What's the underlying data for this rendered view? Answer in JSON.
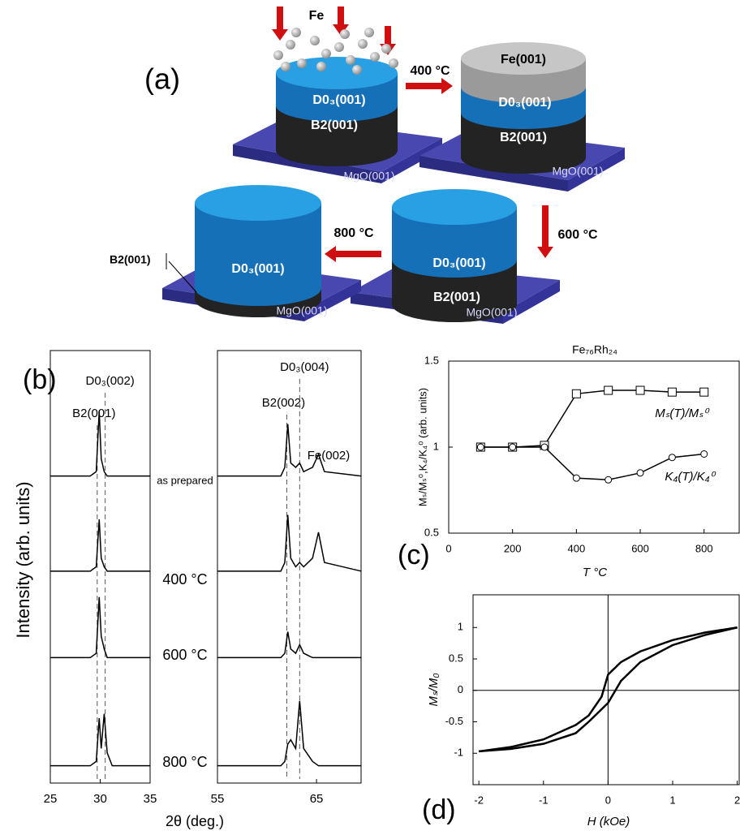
{
  "panel_a": {
    "label": "(a)",
    "deposit": "Fe",
    "steps": [
      "400 °C",
      "600 °C",
      "800 °C"
    ],
    "stages": [
      {
        "layers": [
          "D0₃(001)",
          "B2(001)"
        ],
        "substrate": "MgO(001)"
      },
      {
        "layers": [
          "Fe(001)",
          "D0₃(001)",
          "B2(001)"
        ],
        "substrate": "MgO(001)"
      },
      {
        "layers": [
          "D0₃(001)",
          "B2(001)"
        ],
        "substrate": "MgO(001)"
      },
      {
        "layers": [
          "D0₃(001)",
          "B2(001)"
        ],
        "substrate": "MgO(001)"
      }
    ]
  },
  "chart_data": [
    {
      "type": "line",
      "label": "(b)",
      "y_label": "Intensity (arb. units)",
      "x_label": "2θ (deg.)",
      "x": [
        25,
        29,
        29.6,
        29.9,
        30.1,
        30.4,
        30.7,
        31.2,
        35
      ],
      "series": [
        {
          "name": "as prepared",
          "color": "#000",
          "values": [
            7.1,
            7.1,
            7.2,
            8.6,
            7.5,
            7.2,
            7.1,
            7.1,
            7.1
          ]
        },
        {
          "name": "400 °C",
          "color": "#000",
          "values": [
            4.9,
            4.9,
            5.0,
            6.1,
            5.2,
            5.0,
            4.9,
            4.9,
            4.9
          ]
        },
        {
          "name": "600 °C",
          "color": "#000",
          "values": [
            2.9,
            2.9,
            3.0,
            4.3,
            3.4,
            3.1,
            2.9,
            2.9,
            2.9
          ]
        },
        {
          "name": "800 °C",
          "color": "#000",
          "values": [
            0.4,
            0.4,
            0.5,
            1.5,
            0.8,
            1.6,
            0.7,
            0.4,
            0.4
          ]
        }
      ],
      "ref_lines": [
        {
          "x": 29.7,
          "label": "B2(001)"
        },
        {
          "x": 30.5,
          "label": "D0₃(002)"
        }
      ],
      "xlim": [
        25,
        35
      ],
      "xticks": [
        25,
        30,
        35
      ],
      "ylim": [
        0,
        10
      ]
    },
    {
      "type": "line",
      "x": [
        55,
        61.4,
        61.8,
        62.1,
        62.4,
        62.9,
        63.3,
        63.7,
        64.6,
        65.2,
        65.8,
        69.5
      ],
      "series": [
        {
          "color": "#000",
          "values": [
            7.1,
            7.1,
            7.3,
            8.3,
            7.4,
            7.3,
            7.4,
            7.2,
            7.3,
            7.6,
            7.2,
            7.1
          ]
        },
        {
          "color": "#000",
          "values": [
            4.9,
            4.9,
            5.1,
            6.2,
            5.2,
            5.0,
            5.1,
            5.0,
            5.2,
            5.8,
            5.1,
            4.9
          ]
        },
        {
          "color": "#000",
          "values": [
            2.9,
            2.9,
            3.0,
            3.5,
            3.1,
            3.0,
            3.2,
            3.0,
            2.9,
            2.9,
            2.9,
            2.9
          ]
        },
        {
          "color": "#000",
          "values": [
            0.4,
            0.4,
            0.5,
            0.9,
            1.0,
            0.8,
            1.9,
            0.8,
            0.5,
            0.4,
            0.4,
            0.4
          ]
        }
      ],
      "ref_lines": [
        {
          "x": 62.0,
          "label": "B2(002)"
        },
        {
          "x": 63.3,
          "label": "D0₃(004)"
        }
      ],
      "peak_label": "Fe(002)",
      "xlim": [
        55,
        69.5
      ],
      "xticks": [
        55,
        65
      ],
      "ylim": [
        0,
        10
      ]
    },
    {
      "type": "line",
      "title": "Fe₇₆Rh₂₄",
      "label": "(c)",
      "x_label": "T °C",
      "y_label": "Mₛ/Mₛ⁰,K₄/K₄⁰ (arb. units)",
      "x": [
        100,
        200,
        300,
        400,
        500,
        600,
        700,
        800
      ],
      "series": [
        {
          "name": "Mₛ(T)/Mₛ⁰",
          "color": "#000",
          "marker": "square",
          "values": [
            1,
            1,
            1.01,
            1.31,
            1.33,
            1.33,
            1.32,
            1.32
          ]
        },
        {
          "name": "K₄(T)/K₄⁰",
          "color": "#000",
          "marker": "circle",
          "values": [
            1,
            1,
            1,
            0.82,
            0.81,
            0.85,
            0.94,
            0.96
          ]
        }
      ],
      "xlim": [
        0,
        910
      ],
      "xticks": [
        0,
        200,
        400,
        600,
        800
      ],
      "ylim": [
        0.5,
        1.5
      ],
      "yticks": [
        0.5,
        1,
        1.5
      ]
    },
    {
      "type": "line",
      "label": "(d)",
      "x_label": "H (kOe)",
      "y_label": "Mₛ/M₀",
      "x": [
        -2,
        -1.5,
        -1,
        -0.5,
        -0.3,
        -0.1,
        0,
        0.2,
        0.5,
        1,
        1.5,
        2
      ],
      "series": [
        {
          "color": "#000",
          "values": [
            -0.97,
            -0.9,
            -0.78,
            -0.55,
            -0.4,
            -0.1,
            0.25,
            0.45,
            0.62,
            0.8,
            0.92,
            1.0
          ]
        },
        {
          "color": "#000",
          "values": [
            -0.97,
            -0.93,
            -0.85,
            -0.68,
            -0.5,
            -0.3,
            -0.2,
            0.15,
            0.45,
            0.72,
            0.88,
            1.0
          ]
        }
      ],
      "xlim": [
        -2.09,
        2.03
      ],
      "xticks": [
        -2,
        -1,
        0,
        1,
        2
      ],
      "ylim": [
        -1.5,
        1.52
      ],
      "yticks": [
        -1,
        -0.5,
        0,
        0.5,
        1
      ],
      "zero_lines": true
    }
  ]
}
